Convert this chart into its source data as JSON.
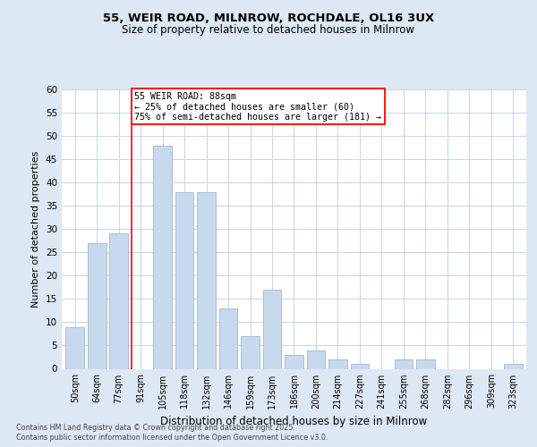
{
  "title1": "55, WEIR ROAD, MILNROW, ROCHDALE, OL16 3UX",
  "title2": "Size of property relative to detached houses in Milnrow",
  "xlabel": "Distribution of detached houses by size in Milnrow",
  "ylabel": "Number of detached properties",
  "categories": [
    "50sqm",
    "64sqm",
    "77sqm",
    "91sqm",
    "105sqm",
    "118sqm",
    "132sqm",
    "146sqm",
    "159sqm",
    "173sqm",
    "186sqm",
    "200sqm",
    "214sqm",
    "227sqm",
    "241sqm",
    "255sqm",
    "268sqm",
    "282sqm",
    "296sqm",
    "309sqm",
    "323sqm"
  ],
  "values": [
    9,
    27,
    29,
    0,
    48,
    38,
    38,
    13,
    7,
    17,
    3,
    4,
    2,
    1,
    0,
    2,
    2,
    0,
    0,
    0,
    1
  ],
  "bar_color": "#c9d9ed",
  "bar_edge_color": "#a0b8d0",
  "red_line_x": 3,
  "annotation_text": "55 WEIR ROAD: 88sqm\n← 25% of detached houses are smaller (60)\n75% of semi-detached houses are larger (181) →",
  "ylim": [
    0,
    60
  ],
  "yticks": [
    0,
    5,
    10,
    15,
    20,
    25,
    30,
    35,
    40,
    45,
    50,
    55,
    60
  ],
  "footnote1": "Contains HM Land Registry data © Crown copyright and database right 2025.",
  "footnote2": "Contains public sector information licensed under the Open Government Licence v3.0.",
  "background_color": "#dde8f5",
  "plot_background": "#ffffff",
  "grid_color": "#c8d4e8"
}
